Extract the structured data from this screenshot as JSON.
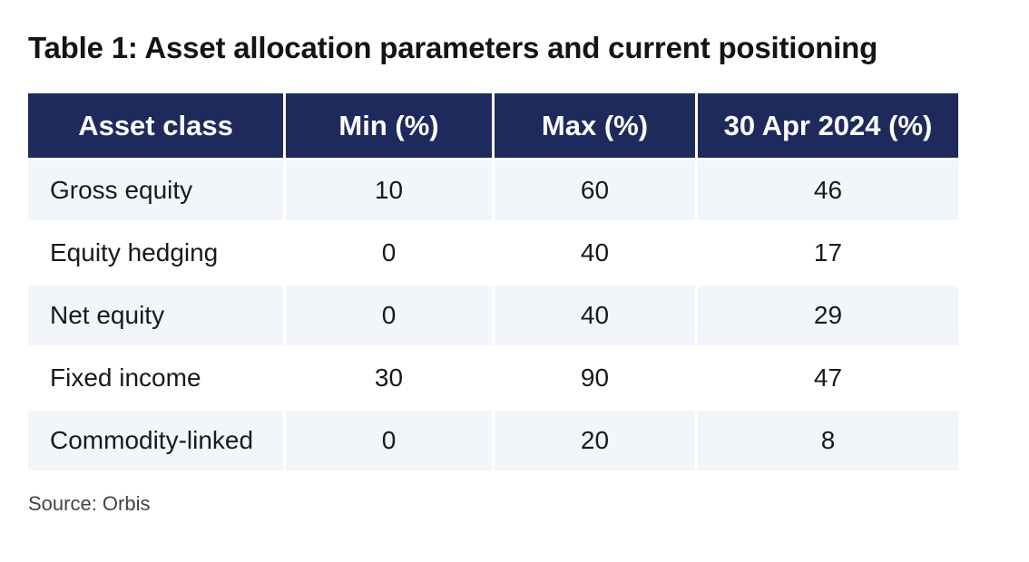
{
  "title": "Table 1: Asset allocation parameters and current positioning",
  "table": {
    "headers": [
      "Asset class",
      "Min (%)",
      "Max (%)",
      "30 Apr 2024 (%)"
    ],
    "rows": [
      [
        "Gross equity",
        "10",
        "60",
        "46"
      ],
      [
        "Equity hedging",
        "0",
        "40",
        "17"
      ],
      [
        "Net equity",
        "0",
        "40",
        "29"
      ],
      [
        "Fixed income",
        "30",
        "90",
        "47"
      ],
      [
        "Commodity-linked",
        "0",
        "20",
        "8"
      ]
    ]
  },
  "source": "Source: Orbis",
  "colors": {
    "header_bg": "#1f2a5c",
    "header_text": "#ffffff",
    "row_shade": "#f2f6fa"
  }
}
